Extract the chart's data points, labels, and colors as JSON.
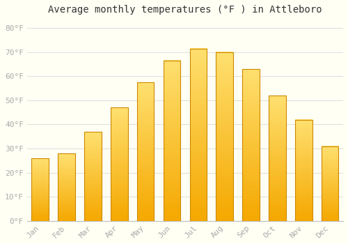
{
  "title": "Average monthly temperatures (°F ) in Attleboro",
  "months": [
    "Jan",
    "Feb",
    "Mar",
    "Apr",
    "May",
    "Jun",
    "Jul",
    "Aug",
    "Sep",
    "Oct",
    "Nov",
    "Dec"
  ],
  "values": [
    26,
    28,
    37,
    47,
    57.5,
    66.5,
    71.5,
    70,
    63,
    52,
    42,
    31
  ],
  "bar_color_bottom": "#F5A800",
  "bar_color_top": "#FFE070",
  "bar_edge_color": "#CC8800",
  "background_color": "#FFFFF4",
  "grid_color": "#DDDDDD",
  "ylim": [
    0,
    84
  ],
  "yticks": [
    0,
    10,
    20,
    30,
    40,
    50,
    60,
    70,
    80
  ],
  "tick_label_color": "#AAAAAA",
  "title_fontsize": 10,
  "tick_fontsize": 8,
  "font_family": "monospace"
}
